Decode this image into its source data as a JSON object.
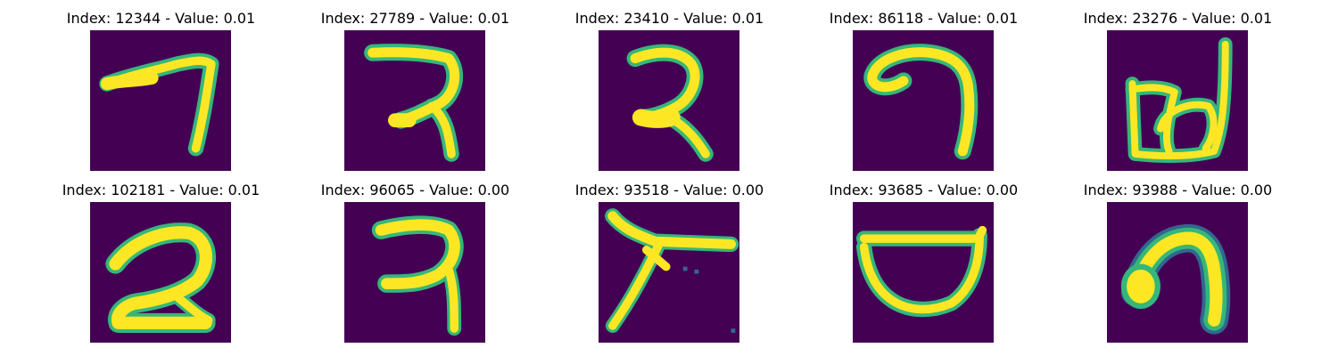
{
  "colors": {
    "background": "#440154",
    "stroke_mid": "#31688e",
    "stroke_edge": "#35b779",
    "stroke_core": "#fde725"
  },
  "panels": [
    {
      "title": "Index: 12344 - Value: 0.01",
      "index": 12344,
      "value": 0.01
    },
    {
      "title": "Index: 27789 - Value: 0.01",
      "index": 27789,
      "value": 0.01
    },
    {
      "title": "Index: 23410 - Value: 0.01",
      "index": 23410,
      "value": 0.01
    },
    {
      "title": "Index: 86118 - Value: 0.01",
      "index": 86118,
      "value": 0.01
    },
    {
      "title": "Index: 23276 - Value: 0.01",
      "index": 23276,
      "value": 0.01
    },
    {
      "title": "Index: 102181 - Value: 0.01",
      "index": 102181,
      "value": 0.01
    },
    {
      "title": "Index: 96065 - Value: 0.00",
      "index": 96065,
      "value": 0.0
    },
    {
      "title": "Index: 93518 - Value: 0.00",
      "index": 93518,
      "value": 0.0
    },
    {
      "title": "Index: 93685 - Value: 0.00",
      "index": 93685,
      "value": 0.0
    },
    {
      "title": "Index: 93988 - Value: 0.00",
      "index": 93988,
      "value": 0.0
    }
  ]
}
